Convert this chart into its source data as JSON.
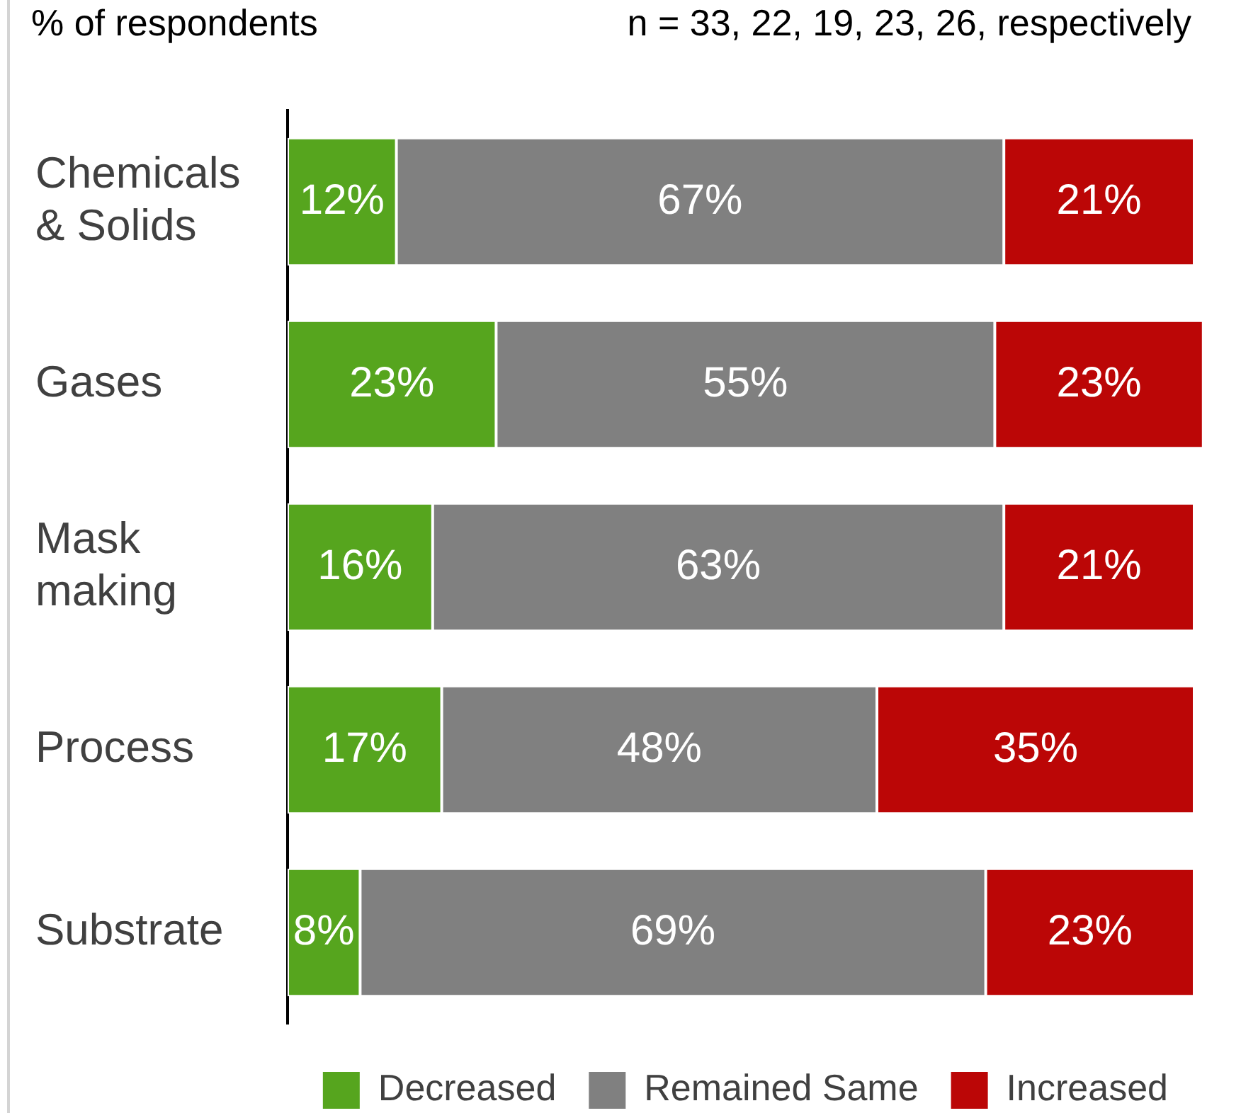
{
  "chart_data": {
    "type": "bar",
    "orientation": "horizontal",
    "stacked": true,
    "title": "% of respondents",
    "annotations": [
      "n = 33, 22, 19, 23, 26, respectively"
    ],
    "categories": [
      "Chemicals & Solids",
      "Gases",
      "Mask making",
      "Process",
      "Substrate"
    ],
    "series": [
      {
        "name": "Decreased",
        "color": "#56a51e",
        "values": [
          12,
          23,
          16,
          17,
          8
        ],
        "value_labels": [
          "12%",
          "23%",
          "16%",
          "17%",
          "8%"
        ]
      },
      {
        "name": "Remained Same",
        "color": "#808080",
        "values": [
          67,
          55,
          63,
          48,
          69
        ],
        "value_labels": [
          "67%",
          "55%",
          "63%",
          "48%",
          "69%"
        ]
      },
      {
        "name": "Increased",
        "color": "#bb0606",
        "values": [
          21,
          23,
          21,
          35,
          23
        ],
        "value_labels": [
          "21%",
          "23%",
          "21%",
          "35%",
          "23%"
        ]
      }
    ],
    "xlim": [
      0,
      101
    ],
    "tick_labels": "y",
    "legend": "bottom"
  }
}
